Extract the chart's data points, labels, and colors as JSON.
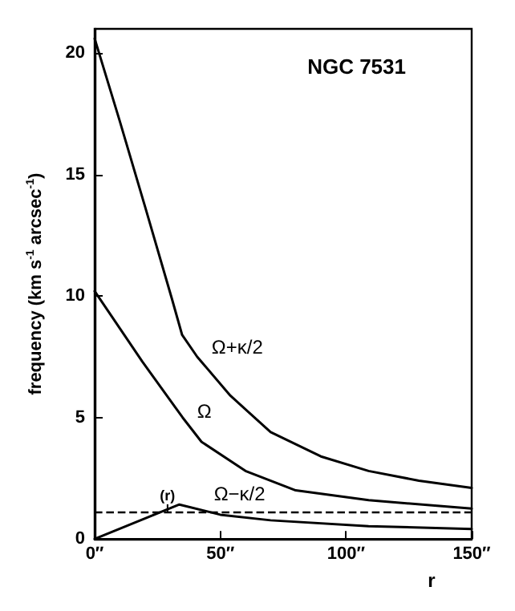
{
  "chart_data": {
    "type": "line",
    "title": "NGC 7531",
    "xlabel": "r",
    "ylabel": "frequency (km s$^{-1}$ arcsec$^{-1}$)",
    "series": [
      {
        "name": "Ω+κ/2",
        "color": "#000000",
        "x": [
          0,
          10,
          20,
          30.7,
          34.8,
          40.8,
          54,
          70,
          90,
          109,
          129,
          150
        ],
        "values": [
          20.6,
          17.2,
          13.7,
          9.9,
          8.4,
          7.5,
          5.9,
          4.4,
          3.4,
          2.8,
          2.4,
          2.1
        ]
      },
      {
        "name": "Ω",
        "color": "#000000",
        "x": [
          0,
          19,
          35,
          42.5,
          60,
          80,
          109,
          150
        ],
        "values": [
          10.2,
          7.3,
          5.0,
          4.0,
          2.8,
          2.0,
          1.6,
          1.25
        ]
      },
      {
        "name": "Ω−κ/2",
        "color": "#000000",
        "x": [
          0,
          33.7,
          50,
          70,
          109,
          150
        ],
        "values": [
          0,
          1.42,
          1.0,
          0.77,
          0.53,
          0.41
        ]
      }
    ],
    "xlim": [
      0,
      150
    ],
    "xticks": [
      {
        "value": 0,
        "label": "0″"
      },
      {
        "value": 50,
        "label": "50″"
      },
      {
        "value": 100,
        "label": "100″"
      },
      {
        "value": 150,
        "label": "150″"
      }
    ],
    "ylim": [
      0,
      21
    ],
    "yticks": [
      0,
      5,
      10,
      15,
      20
    ],
    "ref_lines": [
      {
        "axis": "y",
        "value": 1.1,
        "line_style": "dashed",
        "color": "#000000"
      }
    ],
    "annotations": [
      {
        "text": "(r)",
        "x": 29,
        "y": 1.1
      }
    ],
    "marker": "none",
    "line_style": "solid",
    "grid": false,
    "legend": false
  }
}
